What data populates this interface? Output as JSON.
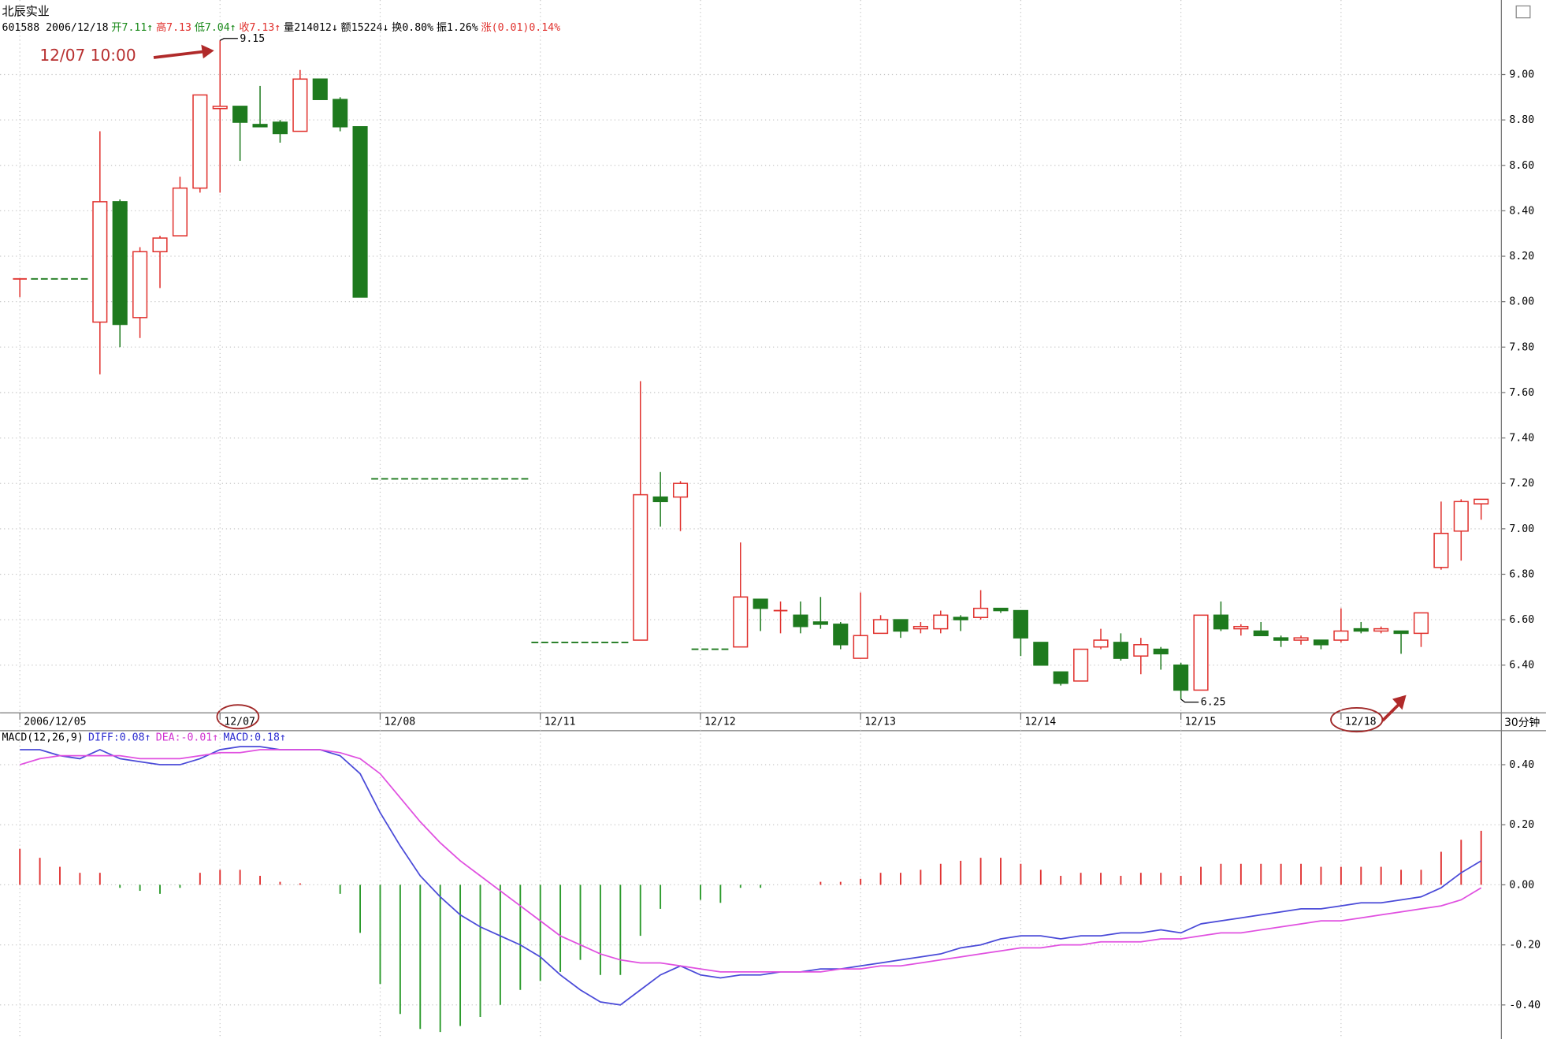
{
  "header": {
    "title": "北辰实业",
    "quote": [
      {
        "text": "601588 2006/12/18",
        "color": "#000000"
      },
      {
        "text": "开7.11↑",
        "color": "#1a8a1a"
      },
      {
        "text": "高7.13",
        "color": "#e0302c"
      },
      {
        "text": "低7.04↑",
        "color": "#1a8a1a"
      },
      {
        "text": "收7.13↑",
        "color": "#e0302c"
      },
      {
        "text": "量214012↓",
        "color": "#000000"
      },
      {
        "text": "额15224↓",
        "color": "#000000"
      },
      {
        "text": "换0.80%",
        "color": "#000000"
      },
      {
        "text": "振1.26%",
        "color": "#000000"
      },
      {
        "text": "涨(0.01)0.14%",
        "color": "#e0302c"
      }
    ]
  },
  "chart_data": [
    {
      "type": "candlestick",
      "categories": [
        "2006/12/05",
        null,
        null,
        null,
        null,
        null,
        null,
        null,
        null,
        null,
        "12/07",
        null,
        null,
        null,
        null,
        null,
        null,
        null,
        "12/08",
        null,
        null,
        null,
        null,
        null,
        null,
        null,
        "12/11",
        null,
        null,
        null,
        null,
        null,
        null,
        null,
        "12/12",
        null,
        null,
        null,
        null,
        null,
        null,
        null,
        "12/13",
        null,
        null,
        null,
        null,
        null,
        null,
        null,
        "12/14",
        null,
        null,
        null,
        null,
        null,
        null,
        null,
        "12/15",
        null,
        null,
        null,
        null,
        null,
        null,
        null,
        "12/18",
        null,
        null,
        null,
        null,
        null,
        null,
        null
      ],
      "open": [
        8.1,
        8.1,
        8.1,
        8.1,
        7.91,
        8.44,
        7.93,
        8.22,
        8.29,
        8.5,
        8.85,
        8.86,
        8.78,
        8.79,
        8.75,
        8.98,
        8.89,
        8.77,
        7.22,
        7.22,
        7.22,
        7.22,
        7.22,
        7.22,
        7.22,
        7.22,
        6.5,
        6.5,
        6.5,
        6.5,
        6.5,
        6.51,
        7.14,
        7.14,
        6.47,
        6.47,
        6.48,
        6.69,
        6.64,
        6.62,
        6.59,
        6.58,
        6.43,
        6.54,
        6.6,
        6.56,
        6.56,
        6.61,
        6.61,
        6.65,
        6.64,
        6.5,
        6.37,
        6.33,
        6.48,
        6.5,
        6.44,
        6.47,
        6.4,
        6.29,
        6.62,
        6.56,
        6.55,
        6.52,
        6.51,
        6.51,
        6.51,
        6.56,
        6.55,
        6.55,
        6.54,
        6.83,
        6.99,
        7.11
      ],
      "high": [
        8.1,
        8.1,
        8.1,
        8.1,
        8.75,
        8.45,
        8.24,
        8.29,
        8.55,
        8.91,
        9.15,
        8.86,
        8.95,
        8.8,
        9.02,
        8.98,
        8.9,
        8.77,
        7.22,
        7.22,
        7.22,
        7.22,
        7.22,
        7.22,
        7.22,
        7.22,
        6.5,
        6.5,
        6.5,
        6.5,
        6.5,
        7.65,
        7.25,
        7.21,
        6.47,
        6.47,
        6.94,
        6.69,
        6.68,
        6.68,
        6.7,
        6.59,
        6.72,
        6.62,
        6.6,
        6.59,
        6.64,
        6.62,
        6.73,
        6.65,
        6.64,
        6.5,
        6.37,
        6.47,
        6.56,
        6.54,
        6.52,
        6.48,
        6.41,
        6.62,
        6.68,
        6.58,
        6.59,
        6.53,
        6.53,
        6.51,
        6.65,
        6.59,
        6.57,
        6.55,
        6.63,
        7.12,
        7.13,
        7.13
      ],
      "low": [
        8.02,
        8.1,
        8.1,
        8.1,
        7.68,
        7.8,
        7.84,
        8.06,
        8.29,
        8.48,
        8.48,
        8.62,
        8.77,
        8.7,
        8.75,
        8.89,
        8.75,
        8.02,
        7.22,
        7.22,
        7.22,
        7.22,
        7.22,
        7.22,
        7.22,
        7.22,
        6.5,
        6.5,
        6.5,
        6.5,
        6.5,
        6.51,
        7.01,
        6.99,
        6.47,
        6.47,
        6.48,
        6.55,
        6.54,
        6.54,
        6.56,
        6.47,
        6.43,
        6.54,
        6.52,
        6.54,
        6.54,
        6.55,
        6.6,
        6.63,
        6.44,
        6.4,
        6.31,
        6.33,
        6.47,
        6.42,
        6.36,
        6.38,
        6.25,
        6.29,
        6.55,
        6.53,
        6.53,
        6.48,
        6.49,
        6.47,
        6.5,
        6.54,
        6.54,
        6.45,
        6.48,
        6.82,
        6.86,
        7.04
      ],
      "close": [
        8.1,
        8.1,
        8.1,
        8.1,
        8.44,
        7.9,
        8.22,
        8.28,
        8.5,
        8.91,
        8.86,
        8.79,
        8.77,
        8.74,
        8.98,
        8.89,
        8.77,
        8.02,
        7.22,
        7.22,
        7.22,
        7.22,
        7.22,
        7.22,
        7.22,
        7.22,
        6.5,
        6.5,
        6.5,
        6.5,
        6.5,
        7.15,
        7.12,
        7.2,
        6.47,
        6.47,
        6.7,
        6.65,
        6.64,
        6.57,
        6.58,
        6.49,
        6.53,
        6.6,
        6.55,
        6.57,
        6.62,
        6.6,
        6.65,
        6.64,
        6.52,
        6.4,
        6.32,
        6.47,
        6.51,
        6.43,
        6.49,
        6.45,
        6.29,
        6.62,
        6.56,
        6.57,
        6.53,
        6.51,
        6.52,
        6.49,
        6.55,
        6.55,
        6.56,
        6.54,
        6.63,
        6.98,
        7.12,
        7.13
      ],
      "up_color": "#e0302c",
      "down_color": "#1e7a1e",
      "ylim": [
        6.19,
        9.28
      ],
      "yticks": [
        {
          "value": 6.4,
          "label": "6.40"
        },
        {
          "value": 6.6,
          "label": "6.60"
        },
        {
          "value": 6.8,
          "label": "6.80"
        },
        {
          "value": 7,
          "label": "7.00"
        },
        {
          "value": 7.2,
          "label": "7.20"
        },
        {
          "value": 7.4,
          "label": "7.40"
        },
        {
          "value": 7.6,
          "label": "7.60"
        },
        {
          "value": 7.8,
          "label": "7.80"
        },
        {
          "value": 8,
          "label": "8.00"
        },
        {
          "value": 8.2,
          "label": "8.20"
        },
        {
          "value": 8.4,
          "label": "8.40"
        },
        {
          "value": 8.6,
          "label": "8.60"
        },
        {
          "value": 8.8,
          "label": "8.80"
        },
        {
          "value": 9,
          "label": "9.00"
        }
      ],
      "grid": true,
      "annotations": [
        "12/07 10:00"
      ],
      "x_unit": "30分钟"
    },
    {
      "type": "macd",
      "title": "MACD(12,26,9)",
      "legend": [
        {
          "text": "DIFF:0.08↑",
          "color": "#2b2bd0"
        },
        {
          "text": "DEA:-0.01↑",
          "color": "#d030d0"
        },
        {
          "text": "MACD:0.18↑",
          "color": "#2b2bd0"
        }
      ],
      "series": [
        {
          "color": "#4a4ad8",
          "values": [
            0.45,
            0.45,
            0.43,
            0.42,
            0.45,
            0.42,
            0.41,
            0.4,
            0.4,
            0.42,
            0.45,
            0.46,
            0.46,
            0.45,
            0.45,
            0.45,
            0.43,
            0.37,
            0.24,
            0.13,
            0.03,
            -0.04,
            -0.1,
            -0.14,
            -0.17,
            -0.2,
            -0.24,
            -0.3,
            -0.35,
            -0.39,
            -0.4,
            -0.35,
            -0.3,
            -0.27,
            -0.3,
            -0.31,
            -0.3,
            -0.3,
            -0.29,
            -0.29,
            -0.28,
            -0.28,
            -0.27,
            -0.26,
            -0.25,
            -0.24,
            -0.23,
            -0.21,
            -0.2,
            -0.18,
            -0.17,
            -0.17,
            -0.18,
            -0.17,
            -0.17,
            -0.16,
            -0.16,
            -0.15,
            -0.16,
            -0.13,
            -0.12,
            -0.11,
            -0.1,
            -0.09,
            -0.08,
            -0.08,
            -0.07,
            -0.06,
            -0.06,
            -0.05,
            -0.04,
            -0.01,
            0.04,
            0.08
          ]
        },
        {
          "color": "#e050e0",
          "values": [
            0.4,
            0.42,
            0.43,
            0.43,
            0.43,
            0.43,
            0.42,
            0.42,
            0.42,
            0.43,
            0.44,
            0.44,
            0.45,
            0.45,
            0.45,
            0.45,
            0.44,
            0.42,
            0.37,
            0.29,
            0.21,
            0.14,
            0.08,
            0.03,
            -0.02,
            -0.07,
            -0.12,
            -0.17,
            -0.2,
            -0.23,
            -0.25,
            -0.26,
            -0.26,
            -0.27,
            -0.28,
            -0.29,
            -0.29,
            -0.29,
            -0.29,
            -0.29,
            -0.29,
            -0.28,
            -0.28,
            -0.27,
            -0.27,
            -0.26,
            -0.25,
            -0.24,
            -0.23,
            -0.22,
            -0.21,
            -0.21,
            -0.2,
            -0.2,
            -0.19,
            -0.19,
            -0.19,
            -0.18,
            -0.18,
            -0.17,
            -0.16,
            -0.16,
            -0.15,
            -0.14,
            -0.13,
            -0.12,
            -0.12,
            -0.11,
            -0.1,
            -0.09,
            -0.08,
            -0.07,
            -0.05,
            -0.01
          ]
        }
      ],
      "histogram": {
        "up_color": "#e03030",
        "down_color": "#2a9a2a",
        "values": [
          0.12,
          0.09,
          0.06,
          0.04,
          0.04,
          -0.01,
          -0.02,
          -0.03,
          -0.01,
          0.04,
          0.05,
          0.05,
          0.03,
          0.01,
          0.005,
          0,
          -0.03,
          -0.16,
          -0.33,
          -0.43,
          -0.48,
          -0.49,
          -0.47,
          -0.44,
          -0.4,
          -0.35,
          -0.32,
          -0.29,
          -0.25,
          -0.3,
          -0.3,
          -0.17,
          -0.08,
          0,
          -0.05,
          -0.06,
          -0.01,
          -0.01,
          0,
          0,
          0.01,
          0.01,
          0.02,
          0.04,
          0.04,
          0.05,
          0.07,
          0.08,
          0.09,
          0.09,
          0.07,
          0.05,
          0.03,
          0.04,
          0.04,
          0.03,
          0.04,
          0.04,
          0.03,
          0.06,
          0.07,
          0.07,
          0.07,
          0.07,
          0.07,
          0.06,
          0.06,
          0.06,
          0.06,
          0.05,
          0.05,
          0.11,
          0.15,
          0.18
        ]
      },
      "ylim": [
        -0.52,
        0.51
      ],
      "yticks": [
        {
          "value": 0.4,
          "label": "0.40"
        },
        {
          "value": 0.2,
          "label": "0.20"
        },
        {
          "value": 0,
          "label": "0.00"
        },
        {
          "value": -0.2,
          "label": "-0.20"
        },
        {
          "value": -0.4,
          "label": "-0.40"
        }
      ]
    }
  ]
}
